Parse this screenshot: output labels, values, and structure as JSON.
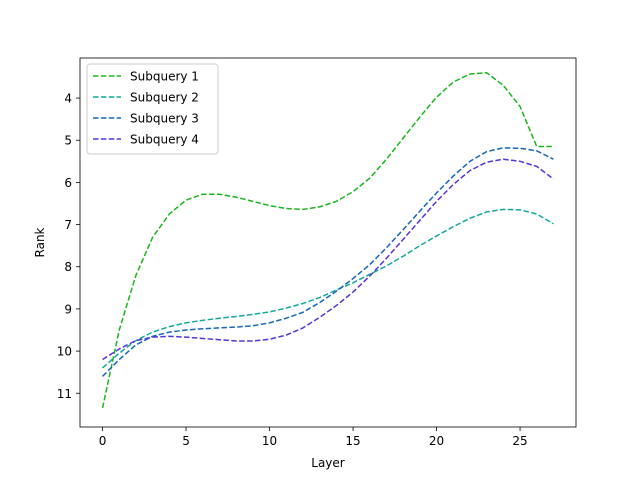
{
  "chart_data": {
    "type": "line",
    "title": "",
    "xlabel": "Layer",
    "ylabel": "Rank",
    "xlim": [
      -1.35,
      28.35
    ],
    "ylim": [
      11.8,
      3.05
    ],
    "y_inverted": true,
    "xticks": [
      0,
      5,
      10,
      15,
      20,
      25
    ],
    "yticks": [
      4,
      5,
      6,
      7,
      8,
      9,
      10,
      11
    ],
    "grid": false,
    "legend_position": "top-left",
    "x": [
      0,
      1,
      2,
      3,
      4,
      5,
      6,
      7,
      8,
      9,
      10,
      11,
      12,
      13,
      14,
      15,
      16,
      17,
      18,
      19,
      20,
      21,
      22,
      23,
      24,
      25,
      26,
      27
    ],
    "series": [
      {
        "name": "Subquery 1",
        "color": "#1db51d",
        "dash": "dashed",
        "values": [
          11.35,
          9.5,
          8.2,
          7.3,
          6.75,
          6.42,
          6.28,
          6.28,
          6.35,
          6.45,
          6.55,
          6.62,
          6.64,
          6.58,
          6.45,
          6.22,
          5.9,
          5.45,
          4.95,
          4.45,
          3.98,
          3.62,
          3.43,
          3.4,
          3.7,
          4.2,
          5.15,
          5.15
        ]
      },
      {
        "name": "Subquery 2",
        "color": "#14a89a",
        "dash": "dashed",
        "values": [
          10.4,
          10.05,
          9.75,
          9.55,
          9.42,
          9.33,
          9.27,
          9.22,
          9.18,
          9.13,
          9.07,
          8.98,
          8.87,
          8.73,
          8.55,
          8.38,
          8.18,
          7.98,
          7.75,
          7.5,
          7.27,
          7.05,
          6.85,
          6.7,
          6.64,
          6.65,
          6.75,
          6.98
        ]
      },
      {
        "name": "Subquery 3",
        "color": "#1a66b8",
        "dash": "dashed",
        "values": [
          10.6,
          10.2,
          9.85,
          9.65,
          9.55,
          9.5,
          9.47,
          9.45,
          9.43,
          9.4,
          9.33,
          9.22,
          9.08,
          8.85,
          8.58,
          8.28,
          7.95,
          7.55,
          7.12,
          6.68,
          6.25,
          5.85,
          5.5,
          5.27,
          5.18,
          5.19,
          5.25,
          5.45
        ]
      },
      {
        "name": "Subquery 4",
        "color": "#5533dd",
        "dash": "dashed",
        "values": [
          10.2,
          9.95,
          9.75,
          9.67,
          9.65,
          9.67,
          9.7,
          9.73,
          9.76,
          9.76,
          9.72,
          9.62,
          9.45,
          9.2,
          8.92,
          8.6,
          8.22,
          7.8,
          7.35,
          6.9,
          6.45,
          6.05,
          5.72,
          5.52,
          5.45,
          5.5,
          5.62,
          5.92
        ]
      }
    ]
  }
}
